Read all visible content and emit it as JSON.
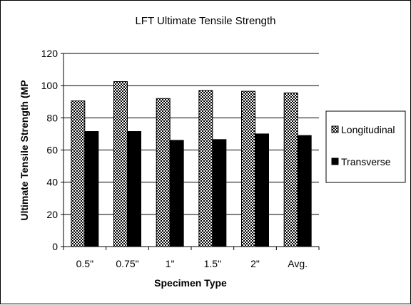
{
  "chart_data": {
    "type": "bar",
    "title": "LFT Ultimate Tensile Strength",
    "xlabel": "Specimen Type",
    "ylabel": "Ultimate Tensile Strength (MP",
    "categories": [
      "0.5\"",
      "0.75\"",
      "1\"",
      "1.5\"",
      "2\"",
      "Avg."
    ],
    "ylim": [
      0,
      120
    ],
    "yticks": [
      0,
      20,
      40,
      60,
      80,
      100,
      120
    ],
    "grid": "horizontal major",
    "legend_position": "right",
    "series": [
      {
        "name": "Longitudinal",
        "pattern": "checkerboard",
        "color": "#000000",
        "values": [
          90.5,
          102.5,
          92,
          97,
          96.5,
          95.5
        ]
      },
      {
        "name": "Transverse",
        "pattern": "solid",
        "color": "#000000",
        "values": [
          71.5,
          71.5,
          66,
          66.5,
          70,
          69
        ]
      }
    ]
  }
}
